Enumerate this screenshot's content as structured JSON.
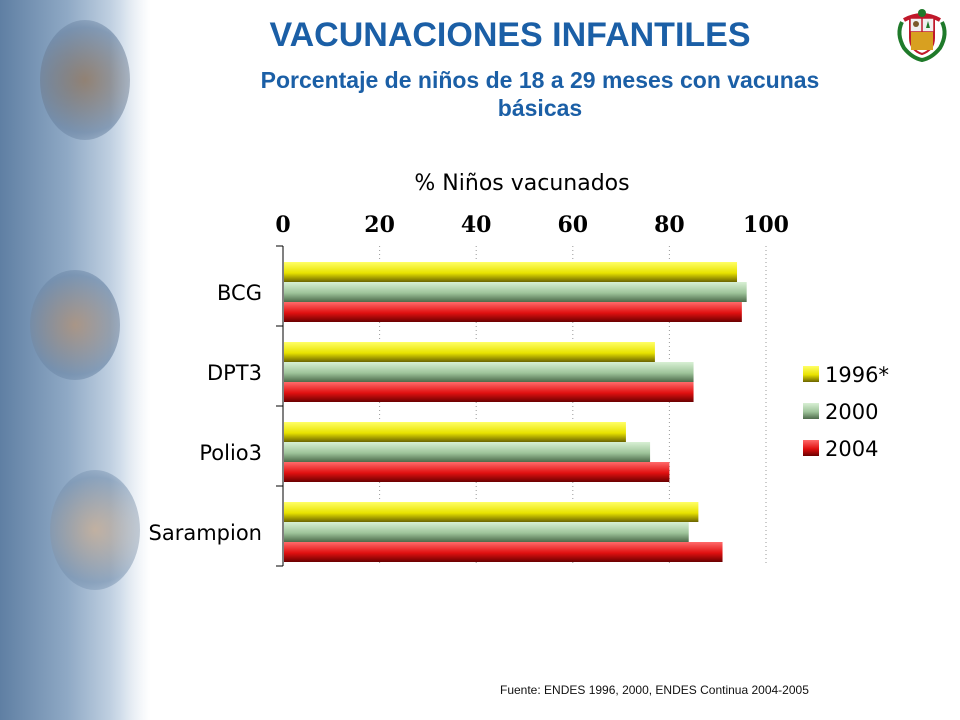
{
  "slide": {
    "title": "VACUNACIONES INFANTILES",
    "subtitle": "Porcentaje de niños de 18 a 29 meses con vacunas básicas",
    "source": "Fuente: ENDES 1996, 2000, ENDES Continua  2004-2005"
  },
  "chart_data": {
    "type": "bar",
    "orientation": "horizontal",
    "title": "% Niños vacunados",
    "xlim": [
      0,
      100
    ],
    "x_ticks": [
      "0",
      "20",
      "40",
      "60",
      "80",
      "100"
    ],
    "categories": [
      "BCG",
      "DPT3",
      "Polio3",
      "Sarampion"
    ],
    "series": [
      {
        "name": "1996*",
        "values": [
          94,
          77,
          71,
          86
        ],
        "color": "#e8e200"
      },
      {
        "name": "2000",
        "values": [
          96,
          85,
          76,
          84
        ],
        "color": "#9ec49a"
      },
      {
        "name": "2004",
        "values": [
          95,
          85,
          80,
          91
        ],
        "color": "#e01010"
      }
    ],
    "grid": "vertical dotted",
    "legend_position": "right"
  }
}
